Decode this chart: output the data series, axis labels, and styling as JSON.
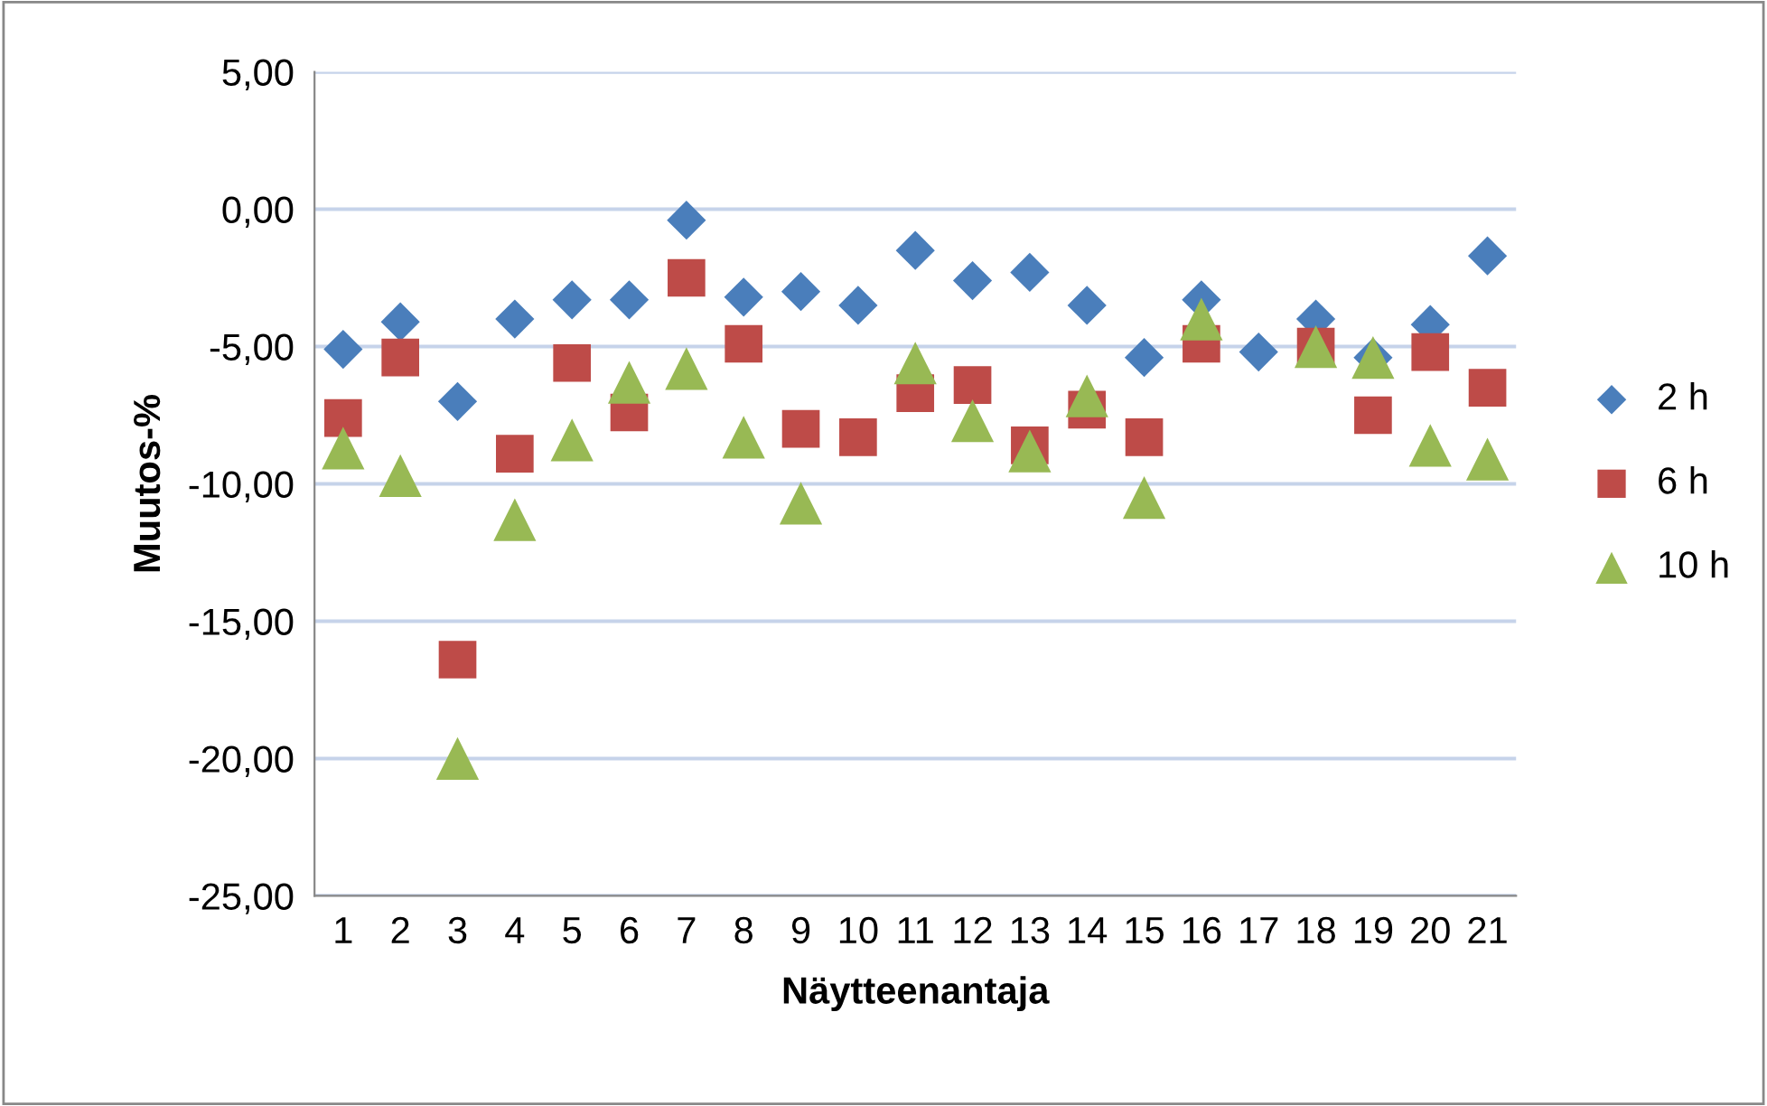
{
  "chart_data": {
    "type": "scatter",
    "xlabel": "Näytteenantaja",
    "ylabel": "Muutos-%",
    "categories": [
      "1",
      "2",
      "3",
      "4",
      "5",
      "6",
      "7",
      "8",
      "9",
      "10",
      "11",
      "12",
      "13",
      "14",
      "15",
      "16",
      "17",
      "18",
      "19",
      "20",
      "21"
    ],
    "series": [
      {
        "name": "2 h",
        "color": "#4a7ebb",
        "marker": "diamond",
        "values": [
          -5.1,
          -4.1,
          -7.0,
          -4.0,
          -3.3,
          -3.3,
          -0.4,
          -3.2,
          -3.0,
          -3.5,
          -1.5,
          -2.6,
          -2.3,
          -3.5,
          -5.4,
          -3.3,
          -5.2,
          -4.0,
          -5.4,
          -4.2,
          -1.7
        ]
      },
      {
        "name": "6 h",
        "color": "#be4b48",
        "marker": "square",
        "values": [
          -7.6,
          -5.4,
          -16.4,
          -8.9,
          -5.6,
          -7.4,
          -2.5,
          -4.9,
          -8.0,
          -8.3,
          -6.7,
          -6.4,
          -8.6,
          -7.3,
          -8.3,
          -4.9,
          null,
          -5.0,
          -7.5,
          -5.2,
          -6.5
        ]
      },
      {
        "name": "10 h",
        "color": "#98b954",
        "marker": "triangle",
        "values": [
          -8.7,
          -9.7,
          -20.0,
          -11.3,
          -8.4,
          -6.3,
          -5.8,
          -8.3,
          -10.7,
          null,
          -5.6,
          -7.7,
          -8.8,
          -6.8,
          -10.5,
          -4.0,
          null,
          -5.0,
          -5.4,
          -8.6,
          -9.1
        ]
      }
    ],
    "ylim": [
      -25,
      5
    ],
    "yticks": [
      {
        "value": -25,
        "label": "-25,00"
      },
      {
        "value": -20,
        "label": "-20,00"
      },
      {
        "value": -15,
        "label": "-15,00"
      },
      {
        "value": -10,
        "label": "-10,00"
      },
      {
        "value": -5,
        "label": "-5,00"
      },
      {
        "value": 0,
        "label": "0,00"
      },
      {
        "value": 5,
        "label": "5,00"
      }
    ],
    "grid": "y",
    "legend": "right"
  }
}
